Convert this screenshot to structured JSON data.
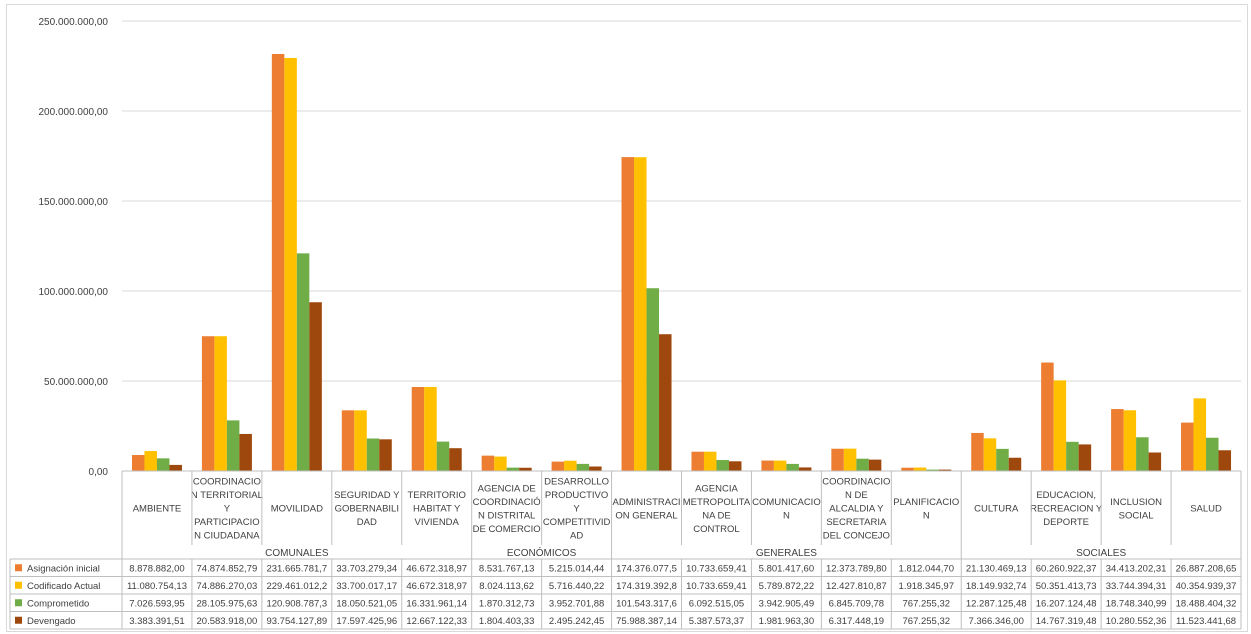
{
  "chart_data": {
    "type": "bar",
    "title": "",
    "xlabel": "",
    "ylabel": "",
    "ylim": [
      0,
      250000000
    ],
    "y_ticks": [
      "0,00",
      "50.000.000,00",
      "100.000.000,00",
      "150.000.000,00",
      "200.000.000,00",
      "250.000.000,00"
    ],
    "grid": true,
    "legend_placement": "data-table",
    "categories": [
      [
        "AMBIENTE"
      ],
      [
        "COORDINACIO",
        "N TERRITORIAL",
        "Y",
        "PARTICIPACIO",
        "N CIUDADANA"
      ],
      [
        "MOVILIDAD"
      ],
      [
        "SEGURIDAD Y",
        "GOBERNABILI",
        "DAD"
      ],
      [
        "TERRITORIO",
        "HABITAT Y",
        "VIVIENDA"
      ],
      [
        "AGENCIA DE",
        "COORDINACIÓ",
        "N DISTRITAL",
        "DE COMERCIO"
      ],
      [
        "DESARROLLO",
        "PRODUCTIVO",
        "Y",
        "COMPETITIVID",
        "AD"
      ],
      [
        "ADMINISTRACI",
        "ON GENERAL"
      ],
      [
        "AGENCIA",
        "METROPOLITA",
        "NA DE",
        "CONTROL"
      ],
      [
        "COMUNICACIO",
        "N"
      ],
      [
        "COORDINACIO",
        "N DE",
        "ALCALDIA Y",
        "SECRETARIA",
        "DEL CONCEJO"
      ],
      [
        "PLANIFICACIO",
        "N"
      ],
      [
        "CULTURA"
      ],
      [
        "EDUCACION,",
        "RECREACION Y",
        "DEPORTE"
      ],
      [
        "INCLUSION",
        "SOCIAL"
      ],
      [
        "SALUD"
      ]
    ],
    "groups": [
      {
        "label": "COMUNALES",
        "span": 5
      },
      {
        "label": "ECONÓMICOS",
        "span": 2
      },
      {
        "label": "GENERALES",
        "span": 5
      },
      {
        "label": "SOCIALES",
        "span": 4
      }
    ],
    "series": [
      {
        "name": "Asignación inicial",
        "color": "#ED7D31",
        "values": [
          8878882.0,
          74874852.79,
          231665781.7,
          33703279.34,
          46672318.97,
          8531767.13,
          5215014.44,
          174376077.5,
          10733659.41,
          5801417.6,
          12373789.8,
          1812044.7,
          21130469.13,
          60260922.37,
          34413202.31,
          26887208.65
        ],
        "labels": [
          "8.878.882,00",
          "74.874.852,79",
          "231.665.781,7",
          "33.703.279,34",
          "46.672.318,97",
          "8.531.767,13",
          "5.215.014,44",
          "174.376.077,5",
          "10.733.659,41",
          "5.801.417,60",
          "12.373.789,80",
          "1.812.044,70",
          "21.130.469,13",
          "60.260.922,37",
          "34.413.202,31",
          "26.887.208,65"
        ]
      },
      {
        "name": "Codificado Actual",
        "color": "#FFC000",
        "values": [
          11080754.13,
          74886270.03,
          229461012.2,
          33700017.17,
          46672318.97,
          8024113.62,
          5716440.22,
          174319392.8,
          10733659.41,
          5789872.22,
          12427810.87,
          1918345.97,
          18149932.74,
          50351413.73,
          33744394.31,
          40354939.37
        ],
        "labels": [
          "11.080.754,13",
          "74.886.270,03",
          "229.461.012,2",
          "33.700.017,17",
          "46.672.318,97",
          "8.024.113,62",
          "5.716.440,22",
          "174.319.392,8",
          "10.733.659,41",
          "5.789.872,22",
          "12.427.810,87",
          "1.918.345,97",
          "18.149.932,74",
          "50.351.413,73",
          "33.744.394,31",
          "40.354.939,37"
        ]
      },
      {
        "name": "Comprometido",
        "color": "#70AD47",
        "values": [
          7026593.95,
          28105975.63,
          120908787.3,
          18050521.05,
          16331961.14,
          1870312.73,
          3952701.88,
          101543317.6,
          6092515.05,
          3942905.49,
          6845709.78,
          767255.32,
          12287125.48,
          16207124.48,
          18748340.99,
          18488404.32
        ],
        "labels": [
          "7.026.593,95",
          "28.105.975,63",
          "120.908.787,3",
          "18.050.521,05",
          "16.331.961,14",
          "1.870.312,73",
          "3.952.701,88",
          "101.543.317,6",
          "6.092.515,05",
          "3.942.905,49",
          "6.845.709,78",
          "767.255,32",
          "12.287.125,48",
          "16.207.124,48",
          "18.748.340,99",
          "18.488.404,32"
        ]
      },
      {
        "name": "Devengado",
        "color": "#9E480E",
        "values": [
          3383391.51,
          20583918.0,
          93754127.89,
          17597425.96,
          12667122.33,
          1804403.33,
          2495242.45,
          75988387.14,
          5387573.37,
          1981963.3,
          6317448.19,
          767255.32,
          7366346.0,
          14767319.48,
          10280552.36,
          11523441.68
        ],
        "labels": [
          "3.383.391,51",
          "20.583.918,00",
          "93.754.127,89",
          "17.597.425,96",
          "12.667.122,33",
          "1.804.403,33",
          "2.495.242,45",
          "75.988.387,14",
          "5.387.573,37",
          "1.981.963,30",
          "6.317.448,19",
          "767.255,32",
          "7.366.346,00",
          "14.767.319,48",
          "10.280.552,36",
          "11.523.441,68"
        ]
      }
    ]
  }
}
